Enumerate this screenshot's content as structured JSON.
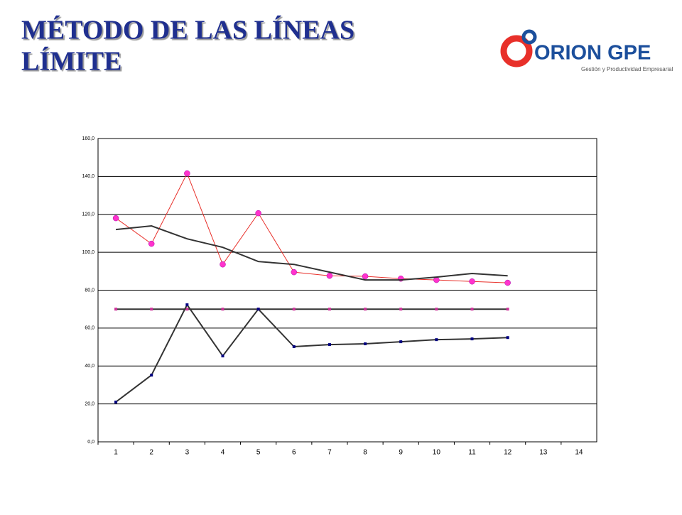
{
  "header": {
    "title_line1": "MÉTODO DE LAS LÍNEAS",
    "title_line2": "LÍMITE",
    "logo_name": "ORION GPE",
    "logo_tagline": "Gestión y Productividad Empresarial"
  },
  "chart_data": {
    "type": "line",
    "categories": [
      "1",
      "2",
      "3",
      "4",
      "5",
      "6",
      "7",
      "8",
      "9",
      "10",
      "11",
      "12",
      "13",
      "14"
    ],
    "ylim": [
      0,
      160
    ],
    "yticks": [
      {
        "value": 0,
        "label": "0,0"
      },
      {
        "value": 20,
        "label": "20,0"
      },
      {
        "value": 40,
        "label": "40,0"
      },
      {
        "value": 60,
        "label": "60,0"
      },
      {
        "value": 80,
        "label": "80,0"
      },
      {
        "value": 100,
        "label": "100,0"
      },
      {
        "value": 120,
        "label": "120,0"
      },
      {
        "value": 140,
        "label": "140,0"
      },
      {
        "value": 160,
        "label": "160,0"
      }
    ],
    "grid": true,
    "series": [
      {
        "color": "#e8302a",
        "marker": "circle",
        "marker_color": "#ff33cc",
        "values": [
          118,
          104.5,
          141.6,
          93.6,
          120.6,
          89.5,
          87.6,
          87.3,
          86.1,
          85.4,
          84.6,
          83.9,
          null,
          null
        ]
      },
      {
        "color": "#333333",
        "marker": "none",
        "values": [
          112,
          113.9,
          107.1,
          102.6,
          95.1,
          93.6,
          89.5,
          85.4,
          85.4,
          86.9,
          88.8,
          87.6,
          null,
          null
        ]
      },
      {
        "color": "#333333",
        "marker": "square",
        "marker_color": "#cc3399",
        "values": [
          70,
          70,
          70,
          70,
          70,
          70,
          70,
          70,
          70,
          70,
          70,
          70,
          null,
          null
        ]
      },
      {
        "color": "#333333",
        "marker": "square",
        "marker_color": "#000080",
        "values": [
          21,
          35.2,
          72.3,
          45.3,
          70,
          50.2,
          51.3,
          51.7,
          52.8,
          53.9,
          54.3,
          55,
          null,
          null
        ]
      }
    ]
  }
}
